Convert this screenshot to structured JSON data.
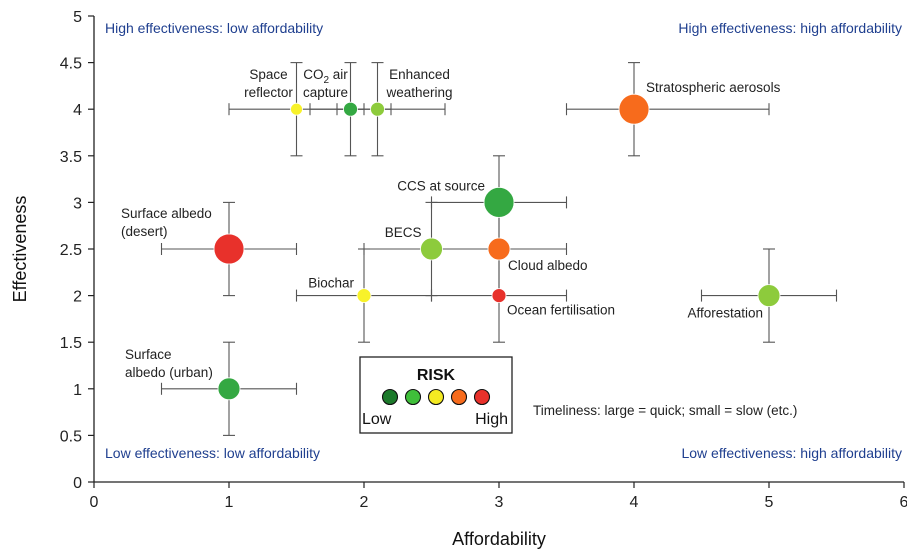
{
  "chart_data": {
    "type": "scatter",
    "xlabel": "Affordability",
    "ylabel": "Effectiveness",
    "xlim": [
      0,
      6
    ],
    "ylim": [
      0,
      5
    ],
    "x_ticks": [
      "0",
      "1",
      "2",
      "3",
      "4",
      "5",
      "6"
    ],
    "y_ticks": [
      "0",
      "0.5",
      "1",
      "1.5",
      "2",
      "2.5",
      "3",
      "3.5",
      "4",
      "4.5",
      "5"
    ],
    "x_tick_values": [
      0,
      1,
      2,
      3,
      4,
      5,
      6
    ],
    "y_tick_values": [
      0,
      0.5,
      1,
      1.5,
      2,
      2.5,
      3,
      3.5,
      4,
      4.5,
      5
    ],
    "grid": false,
    "quadrant_labels": {
      "top_left": "High effectiveness: low affordability",
      "top_right": "High effectiveness: high affordability",
      "bottom_left": "Low effectiveness: low affordability",
      "bottom_right": "Low effectiveness: high affordability"
    },
    "risk_legend": {
      "title": "RISK",
      "low_label": "Low",
      "high_label": "High",
      "colors": [
        "#1c7a2b",
        "#3fbf3a",
        "#f4ea22",
        "#f76b1c",
        "#e8312b"
      ]
    },
    "timeliness_note": "Timeliness: large = quick; small = slow (etc.)",
    "points": [
      {
        "label": "Space reflector",
        "label_lines": [
          "Space",
          "reflector"
        ],
        "x": 1.5,
        "y": 4,
        "x_err": [
          1,
          2
        ],
        "y_err": [
          3.5,
          4.5
        ],
        "risk": 3,
        "color": "#f8f22a",
        "timeliness": 1
      },
      {
        "label": "CO2 air capture",
        "label_lines": [
          "CO",
          "air",
          "capture"
        ],
        "x": 1.9,
        "y": 4,
        "x_err": [
          1.6,
          2.2
        ],
        "y_err": [
          3.5,
          4.5
        ],
        "risk": 2,
        "color": "#34a842",
        "timeliness": 2
      },
      {
        "label": "Enhanced weathering",
        "label_lines": [
          "Enhanced",
          "weathering"
        ],
        "x": 2.1,
        "y": 4,
        "x_err": [
          1.8,
          2.6
        ],
        "y_err": [
          3.5,
          4.5
        ],
        "risk": 2,
        "color": "#8dcb3c",
        "timeliness": 2
      },
      {
        "label": "Stratospheric aerosols",
        "label_lines": [
          "Stratospheric aerosols"
        ],
        "x": 4,
        "y": 4,
        "x_err": [
          3.5,
          5
        ],
        "y_err": [
          3.5,
          4.5
        ],
        "risk": 4,
        "color": "#f76b1c",
        "timeliness": 5
      },
      {
        "label": "CCS at source",
        "label_lines": [
          "CCS at source"
        ],
        "x": 3,
        "y": 3,
        "x_err": [
          2.5,
          3.5
        ],
        "y_err": [
          2.5,
          3.5
        ],
        "risk": 2,
        "color": "#34a842",
        "timeliness": 5
      },
      {
        "label": "Surface albedo (desert)",
        "label_lines": [
          "Surface albedo",
          "(desert)"
        ],
        "x": 1,
        "y": 2.5,
        "x_err": [
          0.5,
          1.5
        ],
        "y_err": [
          2,
          3
        ],
        "risk": 5,
        "color": "#e8312b",
        "timeliness": 5
      },
      {
        "label": "BECS",
        "label_lines": [
          "BECS"
        ],
        "x": 2.5,
        "y": 2.5,
        "x_err": [
          2,
          3
        ],
        "y_err": [
          2,
          3
        ],
        "risk": 2,
        "color": "#8dcb3c",
        "timeliness": 4
      },
      {
        "label": "Cloud albedo",
        "label_lines": [
          "Cloud albedo"
        ],
        "x": 3,
        "y": 2.5,
        "x_err": [
          2.5,
          3.5
        ],
        "y_err": [
          2,
          3
        ],
        "risk": 4,
        "color": "#f76b1c",
        "timeliness": 4
      },
      {
        "label": "Biochar",
        "label_lines": [
          "Biochar"
        ],
        "x": 2,
        "y": 2,
        "x_err": [
          1.5,
          2.5
        ],
        "y_err": [
          1.5,
          2.5
        ],
        "risk": 3,
        "color": "#f8f22a",
        "timeliness": 2
      },
      {
        "label": "Ocean fertilisation",
        "label_lines": [
          "Ocean fertilisation"
        ],
        "x": 3,
        "y": 2,
        "x_err": [
          2.5,
          3.5
        ],
        "y_err": [
          1.5,
          2.5
        ],
        "risk": 5,
        "color": "#e8312b",
        "timeliness": 2
      },
      {
        "label": "Afforestation",
        "label_lines": [
          "Afforestation"
        ],
        "x": 5,
        "y": 2,
        "x_err": [
          4.5,
          5.5
        ],
        "y_err": [
          1.5,
          2.5
        ],
        "risk": 2,
        "color": "#8dcb3c",
        "timeliness": 4
      },
      {
        "label": "Surface albedo (urban)",
        "label_lines": [
          "Surface",
          "albedo (urban)"
        ],
        "x": 1,
        "y": 1,
        "x_err": [
          0.5,
          1.5
        ],
        "y_err": [
          0.5,
          1.5
        ],
        "risk": 2,
        "color": "#34a842",
        "timeliness": 4
      }
    ]
  }
}
